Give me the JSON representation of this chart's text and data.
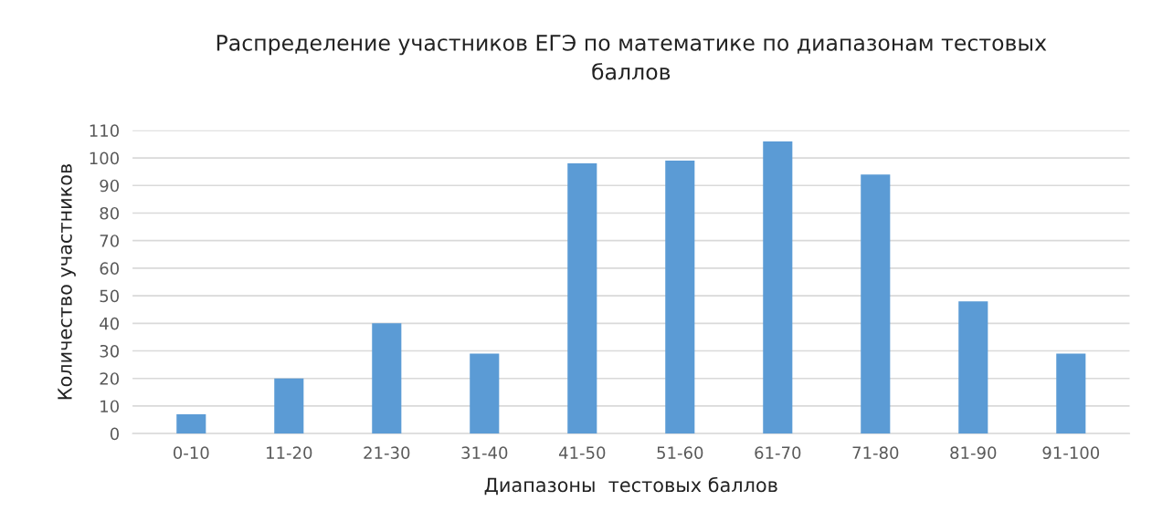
{
  "chart_data": {
    "type": "bar",
    "title": "Распределение участников ЕГЭ по математике по диапазонам тестовых\nбаллов",
    "xlabel": "Диапазоны  тестовых баллов",
    "ylabel": "Количество участников",
    "categories": [
      "0-10",
      "11-20",
      "21-30",
      "31-40",
      "41-50",
      "51-60",
      "61-70",
      "71-80",
      "81-90",
      "91-100"
    ],
    "values": [
      7,
      20,
      40,
      29,
      98,
      99,
      106,
      94,
      48,
      29
    ],
    "color": "#5b9bd5",
    "ylim": [
      0,
      110
    ],
    "yticks": [
      0,
      10,
      20,
      30,
      40,
      50,
      60,
      70,
      80,
      90,
      100,
      110
    ],
    "grid": "y"
  }
}
